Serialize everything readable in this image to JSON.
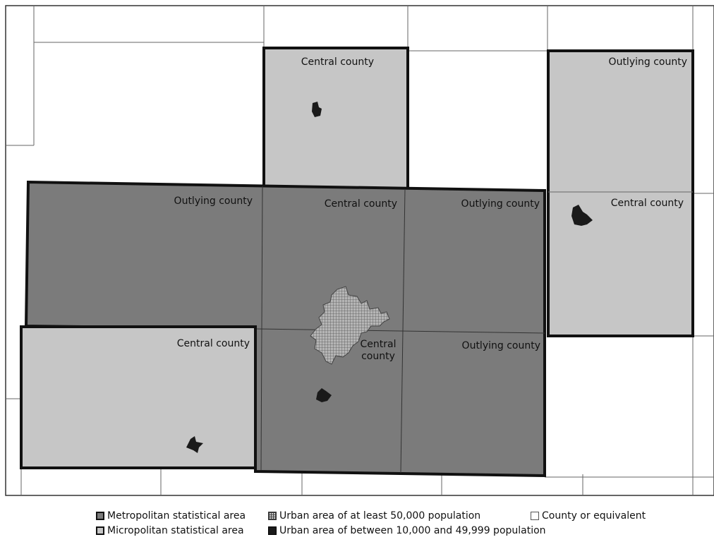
{
  "counties": {
    "top_center": "Central county",
    "top_right": "Outlying county",
    "right_lower": "Central county",
    "mid_left": "Outlying county",
    "mid_center": "Central county",
    "mid_right": "Outlying county",
    "bottom_left": "Central county",
    "bottom_center_line1": "Central",
    "bottom_center_line2": "county",
    "bottom_right": "Outlying county"
  },
  "legend": {
    "metro": "Metropolitan statistical area",
    "micro": "Micropolitan statistical area",
    "urban50": "Urban area of at least 50,000 population",
    "urban10": "Urban area of between 10,000 and 49,999 population",
    "county": "County or equivalent"
  },
  "colors": {
    "metropolitan": "#7b7b7b",
    "micropolitan": "#c6c6c6",
    "urban_large": "#9a9a9a",
    "urban_small": "#1a1a1a",
    "county": "#ffffff"
  }
}
